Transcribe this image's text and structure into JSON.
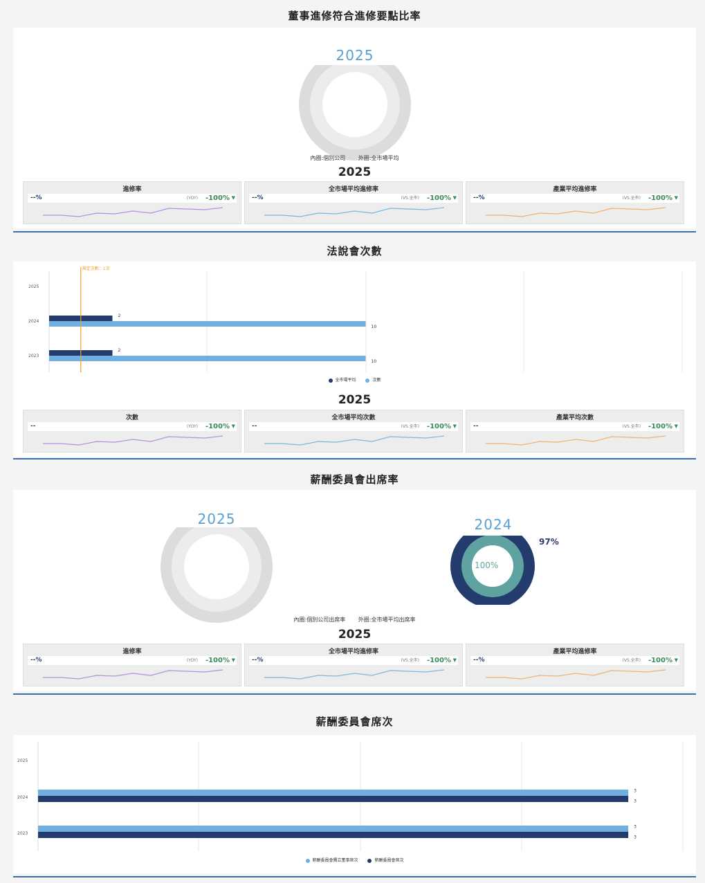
{
  "sections": {
    "s1": {
      "title": "董事進修符合進修要點比率",
      "year": "2025",
      "note_inner": "內圈:個別公司",
      "note_outer": "外圈:全市場平均",
      "stats_year": "2025"
    },
    "s2": {
      "title": "法說會次數",
      "stats_year": "2025"
    },
    "s3": {
      "title": "薪酬委員會出席率",
      "year_left": "2025",
      "year_right": "2024",
      "outer_pct": "97%",
      "inner_pct": "100%",
      "note_inner": "內圈:個別公司出席率",
      "note_outer": "外圈:全市場平均出席率",
      "stats_year": "2025"
    },
    "s4": {
      "title": "薪酬委員會席次"
    }
  },
  "stat_cards": {
    "s1": [
      {
        "title": "進修率",
        "value": "--%",
        "compare": "(YOY)",
        "pct": "-100%",
        "arrow": "▼"
      },
      {
        "title": "全市場平均進修率",
        "value": "--%",
        "compare": "(VS.全市)",
        "pct": "-100%",
        "arrow": "▼"
      },
      {
        "title": "產業平均進修率",
        "value": "--%",
        "compare": "(VS.全市)",
        "pct": "-100%",
        "arrow": "▼"
      }
    ],
    "s2": [
      {
        "title": "次數",
        "value": "--",
        "compare": "(YOY)",
        "pct": "-100%",
        "arrow": "▼"
      },
      {
        "title": "全市場平均次數",
        "value": "--",
        "compare": "(VS.全市)",
        "pct": "-100%",
        "arrow": "▼"
      },
      {
        "title": "產業平均次數",
        "value": "--",
        "compare": "(VS.全市)",
        "pct": "-100%",
        "arrow": "▼"
      }
    ],
    "s3": [
      {
        "title": "進修率",
        "value": "--%",
        "compare": "(YOY)",
        "pct": "-100%",
        "arrow": "▼"
      },
      {
        "title": "全市場平均進修率",
        "value": "--%",
        "compare": "(VS.全市)",
        "pct": "-100%",
        "arrow": "▼"
      },
      {
        "title": "產業平均進修率",
        "value": "--%",
        "compare": "(VS.全市)",
        "pct": "-100%",
        "arrow": "▼"
      }
    ]
  },
  "colors": {
    "purple": "#b48ee0",
    "blue": "#7ab6e0",
    "orange": "#f0b070",
    "navy": "#243b6e",
    "lightblue": "#6fb0e0",
    "teal": "#5fa3a0",
    "gray": "#dcdcdc",
    "accent_line": "#3a6fa8"
  },
  "chart_data": [
    {
      "type": "bar",
      "categories": [
        "2025",
        "2024",
        "2023"
      ],
      "series": [
        {
          "name": "全市場平均",
          "values": [
            null,
            2,
            2
          ]
        },
        {
          "name": "次數",
          "values": [
            null,
            10,
            10
          ]
        }
      ],
      "annotation": "規定次數：1次",
      "reference_line": 1,
      "xlim": [
        0,
        20
      ]
    },
    {
      "type": "bar",
      "categories": [
        "2025",
        "2024",
        "2023"
      ],
      "series": [
        {
          "name": "薪酬委員會獨立董事席次",
          "values": [
            null,
            3,
            3
          ]
        },
        {
          "name": "薪酬委員會席次",
          "values": [
            null,
            3,
            3
          ]
        }
      ],
      "xlim": [
        0,
        3.2
      ]
    }
  ]
}
